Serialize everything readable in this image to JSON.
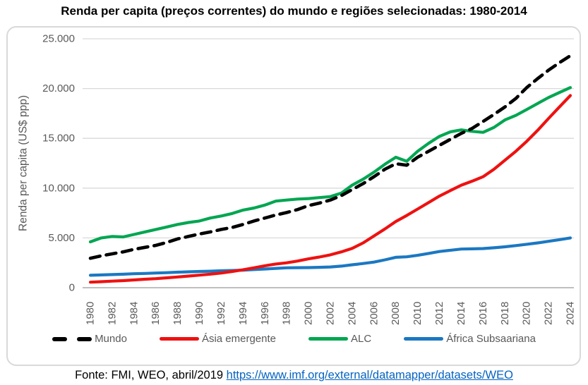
{
  "title": "Renda per capita (preços correntes) do mundo e regiões selecionadas: 1980-2014",
  "footer": {
    "text": "Fonte: FMI, WEO, abril/2019 ",
    "link": "https://www.imf.org/external/datamapper/datasets/WEO"
  },
  "colors": {
    "mundo": "#000000",
    "asia_emergente": "#EE1111",
    "alc": "#00A651",
    "africa_subsaariana": "#1B78C2",
    "grid": "#D9D9D9",
    "axis_line": "#BFBFBF",
    "tick_text": "#595959",
    "link": "#0563C1"
  },
  "chart_data": {
    "type": "line",
    "title": "Renda per capita (preços correntes) do mundo e regiões selecionadas: 1980-2014",
    "xlabel": "",
    "ylabel": "Renda per capita (US$ ppp)",
    "xlim": [
      1980,
      2024
    ],
    "ylim": [
      0,
      25000
    ],
    "grid": true,
    "legend_position": "bottom",
    "yticks": [
      0,
      5000,
      10000,
      15000,
      20000,
      25000
    ],
    "ytick_labels": [
      "0",
      "5.000",
      "10.000",
      "15.000",
      "20.000",
      "25.000"
    ],
    "xticks": [
      1980,
      1982,
      1984,
      1986,
      1988,
      1990,
      1992,
      1994,
      1996,
      1998,
      2000,
      2002,
      2004,
      2006,
      2008,
      2010,
      2012,
      2014,
      2016,
      2018,
      2020,
      2022,
      2024
    ],
    "x": [
      1980,
      1981,
      1982,
      1983,
      1984,
      1985,
      1986,
      1987,
      1988,
      1989,
      1990,
      1991,
      1992,
      1993,
      1994,
      1995,
      1996,
      1997,
      1998,
      1999,
      2000,
      2001,
      2002,
      2003,
      2004,
      2005,
      2006,
      2007,
      2008,
      2009,
      2010,
      2011,
      2012,
      2013,
      2014,
      2015,
      2016,
      2017,
      2018,
      2019,
      2020,
      2021,
      2022,
      2023,
      2024
    ],
    "series": [
      {
        "name": "Mundo",
        "color": "#000000",
        "dash": true,
        "values": [
          2950,
          3200,
          3400,
          3600,
          3850,
          4050,
          4250,
          4550,
          4900,
          5150,
          5400,
          5600,
          5850,
          6050,
          6350,
          6700,
          7000,
          7300,
          7550,
          7850,
          8250,
          8500,
          8800,
          9250,
          9850,
          10450,
          11150,
          11900,
          12450,
          12300,
          13100,
          13700,
          14300,
          14900,
          15500,
          16000,
          16700,
          17400,
          18150,
          19000,
          20100,
          21000,
          21850,
          22600,
          23300
        ]
      },
      {
        "name": "Ásia emergente",
        "color": "#EE1111",
        "dash": false,
        "values": [
          550,
          600,
          660,
          710,
          780,
          850,
          910,
          990,
          1080,
          1170,
          1260,
          1360,
          1470,
          1630,
          1800,
          2000,
          2200,
          2380,
          2500,
          2680,
          2900,
          3080,
          3300,
          3600,
          3950,
          4500,
          5200,
          5900,
          6650,
          7250,
          7900,
          8550,
          9200,
          9750,
          10300,
          10700,
          11150,
          11900,
          12800,
          13700,
          14700,
          15800,
          17000,
          18150,
          19300
        ]
      },
      {
        "name": "ALC",
        "color": "#00A651",
        "dash": false,
        "values": [
          4600,
          5000,
          5150,
          5100,
          5350,
          5600,
          5850,
          6100,
          6350,
          6550,
          6700,
          7000,
          7200,
          7450,
          7800,
          8000,
          8300,
          8700,
          8800,
          8900,
          8950,
          9050,
          9150,
          9500,
          10300,
          10900,
          11600,
          12400,
          13100,
          12700,
          13700,
          14500,
          15200,
          15650,
          15850,
          15700,
          15600,
          16100,
          16850,
          17300,
          17900,
          18500,
          19100,
          19600,
          20100
        ]
      },
      {
        "name": "África Subsaariana",
        "color": "#1B78C2",
        "dash": false,
        "values": [
          1250,
          1280,
          1320,
          1350,
          1400,
          1430,
          1470,
          1510,
          1560,
          1590,
          1630,
          1660,
          1700,
          1730,
          1760,
          1820,
          1880,
          1940,
          2000,
          2010,
          2020,
          2050,
          2080,
          2170,
          2300,
          2430,
          2570,
          2800,
          3050,
          3100,
          3250,
          3440,
          3630,
          3760,
          3880,
          3900,
          3930,
          4010,
          4110,
          4230,
          4360,
          4500,
          4660,
          4820,
          5000
        ]
      }
    ]
  }
}
